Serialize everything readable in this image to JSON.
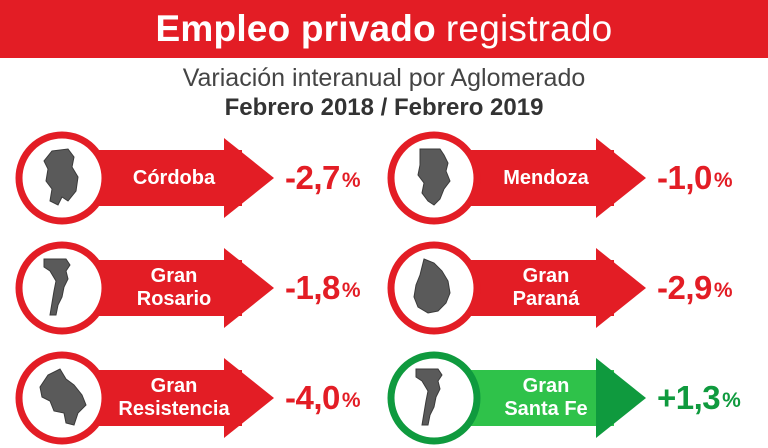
{
  "header": {
    "title_bold": "Empleo privado",
    "title_light": "registrado",
    "subtitle": "Variación interanual por Aglomerado",
    "period": "Febrero 2018 / Febrero 2019"
  },
  "colors": {
    "negative": "#e31d25",
    "positive": "#0f9a3e",
    "positive_light": "#2fc24a"
  },
  "items": [
    {
      "icon": "cordoba-map-icon",
      "line1": "Córdoba",
      "line2": "",
      "value": "-2,7",
      "unit": "%",
      "trend": "negative"
    },
    {
      "icon": "mendoza-map-icon",
      "line1": "Mendoza",
      "line2": "",
      "value": "-1,0",
      "unit": "%",
      "trend": "negative"
    },
    {
      "icon": "santa-fe-map-icon",
      "line1": "Gran",
      "line2": "Rosario",
      "value": "-1,8",
      "unit": "%",
      "trend": "negative"
    },
    {
      "icon": "entre-rios-map-icon",
      "line1": "Gran",
      "line2": "Paraná",
      "value": "-2,9",
      "unit": "%",
      "trend": "negative"
    },
    {
      "icon": "chaco-map-icon",
      "line1": "Gran",
      "line2": "Resistencia",
      "value": "-4,0",
      "unit": "%",
      "trend": "negative"
    },
    {
      "icon": "santa-fe-map-icon",
      "line1": "Gran",
      "line2": "Santa Fe",
      "value": "+1,3",
      "unit": "%",
      "trend": "positive"
    }
  ]
}
